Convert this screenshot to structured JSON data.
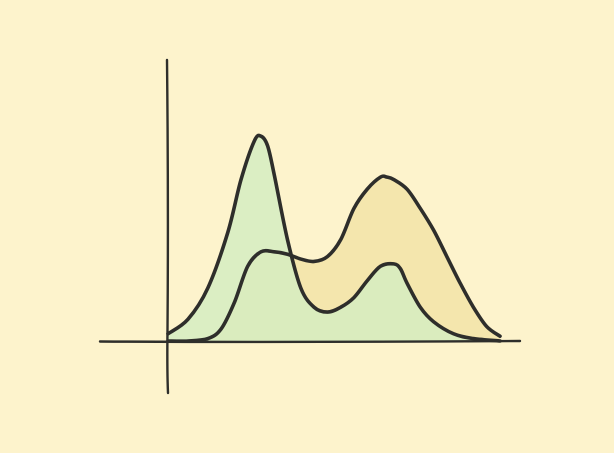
{
  "colors": {
    "background": "#fdf3cc",
    "stroke": "#2e2e2b",
    "series_a_fill": "#d5ecc1",
    "series_b_fill": "#f4e6ad"
  },
  "chart_data": {
    "type": "area",
    "title": "",
    "xlabel": "",
    "ylabel": "",
    "xlim": [
      0,
      100
    ],
    "ylim": [
      0,
      100
    ],
    "grid": false,
    "legend": "none",
    "tick_labels": false,
    "series": [
      {
        "key": "a",
        "color": "#d5ecc1",
        "x": [
          0,
          6,
          12,
          18,
          22,
          26,
          28,
          30,
          32,
          36,
          40,
          44,
          48,
          52,
          56,
          60,
          64,
          68,
          70,
          72,
          76,
          80,
          86,
          92,
          100
        ],
        "y": [
          3,
          9,
          22,
          45,
          67,
          83,
          85,
          81,
          69,
          42,
          22,
          14,
          12,
          14,
          18,
          25,
          31,
          32,
          30,
          24,
          14,
          8,
          3,
          1,
          0
        ]
      },
      {
        "key": "b",
        "color": "#f4e6ad",
        "x": [
          0,
          6,
          12,
          16,
          20,
          24,
          28,
          32,
          36,
          40,
          44,
          48,
          52,
          56,
          60,
          64,
          66,
          68,
          72,
          76,
          80,
          84,
          88,
          92,
          96,
          100
        ],
        "y": [
          0,
          0,
          1,
          5,
          16,
          31,
          37,
          37,
          36,
          34,
          33,
          35,
          42,
          55,
          63,
          68,
          68,
          67,
          63,
          55,
          46,
          35,
          24,
          14,
          6,
          2
        ]
      }
    ]
  }
}
